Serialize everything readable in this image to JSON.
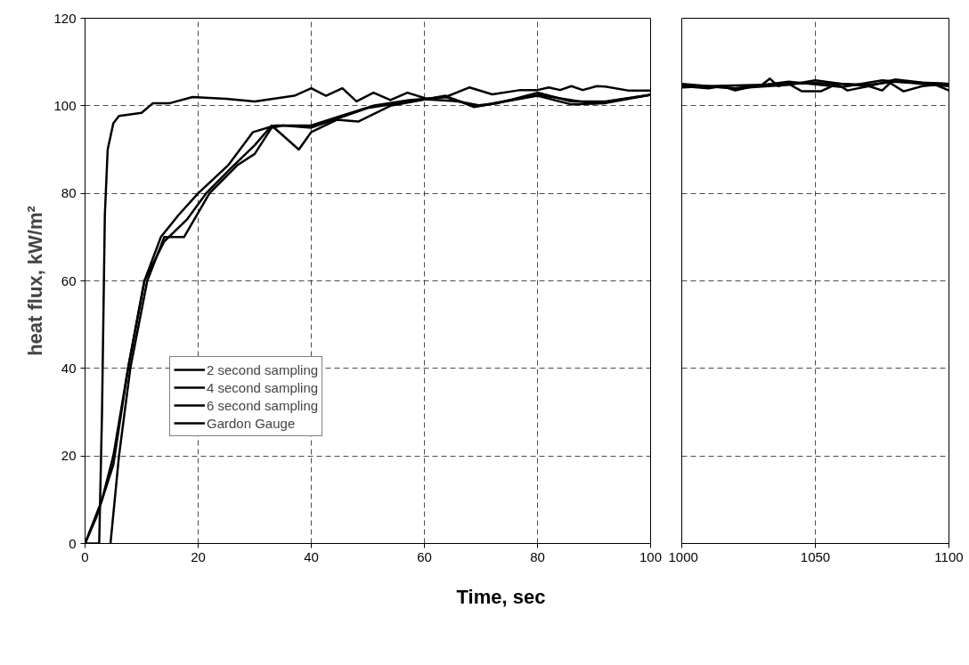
{
  "chart_data": [
    {
      "type": "line",
      "xlabel": "Time, sec",
      "ylabel": "heat flux, kW/m²",
      "xlim": [
        0,
        100
      ],
      "xticks": [
        0,
        20,
        40,
        60,
        80,
        100
      ],
      "ylim": [
        0,
        120
      ],
      "yticks": [
        0,
        20,
        40,
        60,
        80,
        100,
        120
      ],
      "grid": true,
      "legend": "left",
      "line_style": "solid",
      "series": [
        {
          "name": "2 second sampling",
          "color": "#000000",
          "x": [
            0,
            3,
            5,
            7.6,
            10.5,
            13.4,
            16.5,
            20,
            25.3,
            29.7,
            33.6,
            40,
            44.5,
            50.9,
            57.3,
            63.7,
            68.8,
            73,
            80,
            86,
            92,
            100
          ],
          "values": [
            0,
            10,
            20,
            40,
            60,
            70,
            75,
            80,
            86.4,
            94,
            95.5,
            95.5,
            97.4,
            100,
            101.3,
            102,
            100,
            100.6,
            103,
            101,
            101,
            102.5
          ]
        },
        {
          "name": "4 second sampling",
          "color": "#000000",
          "x": [
            0,
            2,
            5,
            7.6,
            10.5,
            14,
            18,
            21.4,
            26,
            30,
            33,
            37.8,
            40,
            44.5,
            48.3,
            54,
            63.7,
            68.8,
            80,
            86,
            92,
            100
          ],
          "values": [
            0,
            6,
            18,
            40,
            60,
            69,
            74,
            80,
            86,
            91,
            95.5,
            90,
            94,
            96.8,
            96.4,
            100,
            102.3,
            99.7,
            102.3,
            100.3,
            100.6,
            102.5
          ]
        },
        {
          "name": "6 second sampling",
          "color": "#000000",
          "x": [
            4.5,
            6,
            8,
            11,
            14,
            17.5,
            22,
            27,
            30,
            33,
            35,
            40,
            50,
            60,
            66,
            70,
            80,
            90,
            100
          ],
          "values": [
            0,
            20,
            40,
            60,
            70,
            70,
            80,
            86.5,
            89,
            95,
            95.5,
            95,
            99.5,
            101.5,
            101,
            100,
            102.5,
            100.5,
            102.5
          ]
        },
        {
          "name": "Gardon Gauge",
          "color": "#000000",
          "x": [
            0,
            2.5,
            3,
            3.5,
            4,
            5,
            6,
            10,
            12,
            15,
            19,
            25,
            30,
            37,
            40,
            42.6,
            45.5,
            48,
            51,
            54,
            57,
            60.5,
            63.7,
            68,
            72,
            77,
            80,
            82,
            84,
            86,
            88,
            90.5,
            92,
            96,
            100
          ],
          "values": [
            0,
            0,
            30,
            75,
            90,
            96,
            97.7,
            98.4,
            100.6,
            100.6,
            102,
            101.6,
            101,
            102.3,
            104,
            102.3,
            104,
            101,
            103,
            101.3,
            103,
            101.6,
            102,
            104.2,
            102.6,
            103.6,
            103.6,
            104.2,
            103.6,
            104.5,
            103.6,
            104.5,
            104.4,
            103.5,
            103.5
          ]
        }
      ]
    },
    {
      "type": "line",
      "xlim": [
        1000,
        1100
      ],
      "xticks": [
        1000,
        1050,
        1100
      ],
      "ylim": [
        0,
        120
      ],
      "yticks": [
        0,
        20,
        40,
        60,
        80,
        100,
        120
      ],
      "grid": true,
      "tick_labels": "x",
      "line_style": "solid",
      "series": [
        {
          "color": "#000000",
          "x": [
            1000,
            1020,
            1040,
            1050,
            1060,
            1070,
            1080,
            1090,
            1100
          ],
          "values": [
            105,
            104,
            104.8,
            105.8,
            105,
            104.5,
            106,
            105.3,
            105
          ]
        },
        {
          "color": "#000000",
          "x": [
            1000,
            1010,
            1030,
            1050,
            1070,
            1080,
            1100
          ],
          "values": [
            104.2,
            104.5,
            104.8,
            105.2,
            104.8,
            105.5,
            105
          ]
        },
        {
          "color": "#000000",
          "x": [
            1000,
            1020,
            1040,
            1060,
            1075,
            1090,
            1100
          ],
          "values": [
            104.8,
            104,
            105.5,
            104.3,
            105.8,
            105,
            104.5
          ]
        },
        {
          "color": "#000000",
          "x": [
            1000,
            1010,
            1015,
            1020,
            1025,
            1030,
            1033,
            1036,
            1040,
            1045,
            1052,
            1058,
            1062,
            1070,
            1075,
            1078,
            1083,
            1090,
            1095,
            1100
          ],
          "values": [
            104.5,
            104,
            104.5,
            103.5,
            104.2,
            104.8,
            106.2,
            104.5,
            105,
            103.3,
            103.3,
            105,
            103.5,
            104.5,
            103.5,
            105.2,
            103.3,
            104.5,
            104.8,
            103.5
          ]
        }
      ]
    }
  ]
}
